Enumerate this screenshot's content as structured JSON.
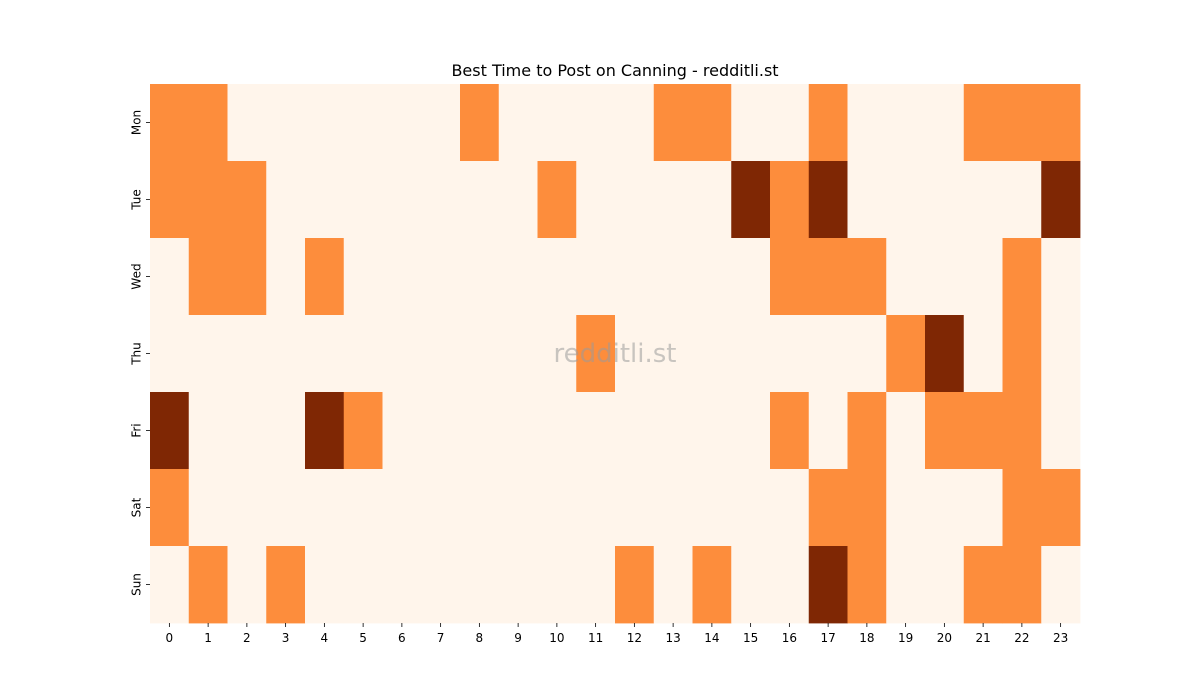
{
  "chart_data": {
    "type": "heatmap",
    "title": "Best Time to Post on Canning - redditli.st",
    "watermark": "redditli.st",
    "xlabel": "",
    "ylabel": "",
    "x_categories": [
      "0",
      "1",
      "2",
      "3",
      "4",
      "5",
      "6",
      "7",
      "8",
      "9",
      "10",
      "11",
      "12",
      "13",
      "14",
      "15",
      "16",
      "17",
      "18",
      "19",
      "20",
      "21",
      "22",
      "23"
    ],
    "y_categories": [
      "Mon",
      "Tue",
      "Wed",
      "Thu",
      "Fri",
      "Sat",
      "Sun"
    ],
    "values": [
      [
        1,
        1,
        0,
        0,
        0,
        0,
        0,
        0,
        1,
        0,
        0,
        0,
        0,
        1,
        1,
        0,
        0,
        1,
        0,
        0,
        0,
        1,
        1,
        1
      ],
      [
        1,
        1,
        1,
        0,
        0,
        0,
        0,
        0,
        0,
        0,
        1,
        0,
        0,
        0,
        0,
        2,
        1,
        2,
        0,
        0,
        0,
        0,
        0,
        2
      ],
      [
        0,
        1,
        1,
        0,
        1,
        0,
        0,
        0,
        0,
        0,
        0,
        0,
        0,
        0,
        0,
        0,
        1,
        1,
        1,
        0,
        0,
        0,
        1,
        0
      ],
      [
        0,
        0,
        0,
        0,
        0,
        0,
        0,
        0,
        0,
        0,
        0,
        1,
        0,
        0,
        0,
        0,
        0,
        0,
        0,
        1,
        2,
        0,
        1,
        0
      ],
      [
        2,
        0,
        0,
        0,
        2,
        1,
        0,
        0,
        0,
        0,
        0,
        0,
        0,
        0,
        0,
        0,
        1,
        0,
        1,
        0,
        1,
        1,
        1,
        0
      ],
      [
        1,
        0,
        0,
        0,
        0,
        0,
        0,
        0,
        0,
        0,
        0,
        0,
        0,
        0,
        0,
        0,
        0,
        1,
        1,
        0,
        0,
        0,
        1,
        1
      ],
      [
        0,
        1,
        0,
        1,
        0,
        0,
        0,
        0,
        0,
        0,
        0,
        0,
        1,
        0,
        1,
        0,
        0,
        2,
        1,
        0,
        0,
        1,
        1,
        0
      ]
    ],
    "colormap": {
      "0": "#fff5eb",
      "1": "#fd8d3c",
      "2": "#7f2704"
    },
    "colorbar": false,
    "grid": false
  }
}
